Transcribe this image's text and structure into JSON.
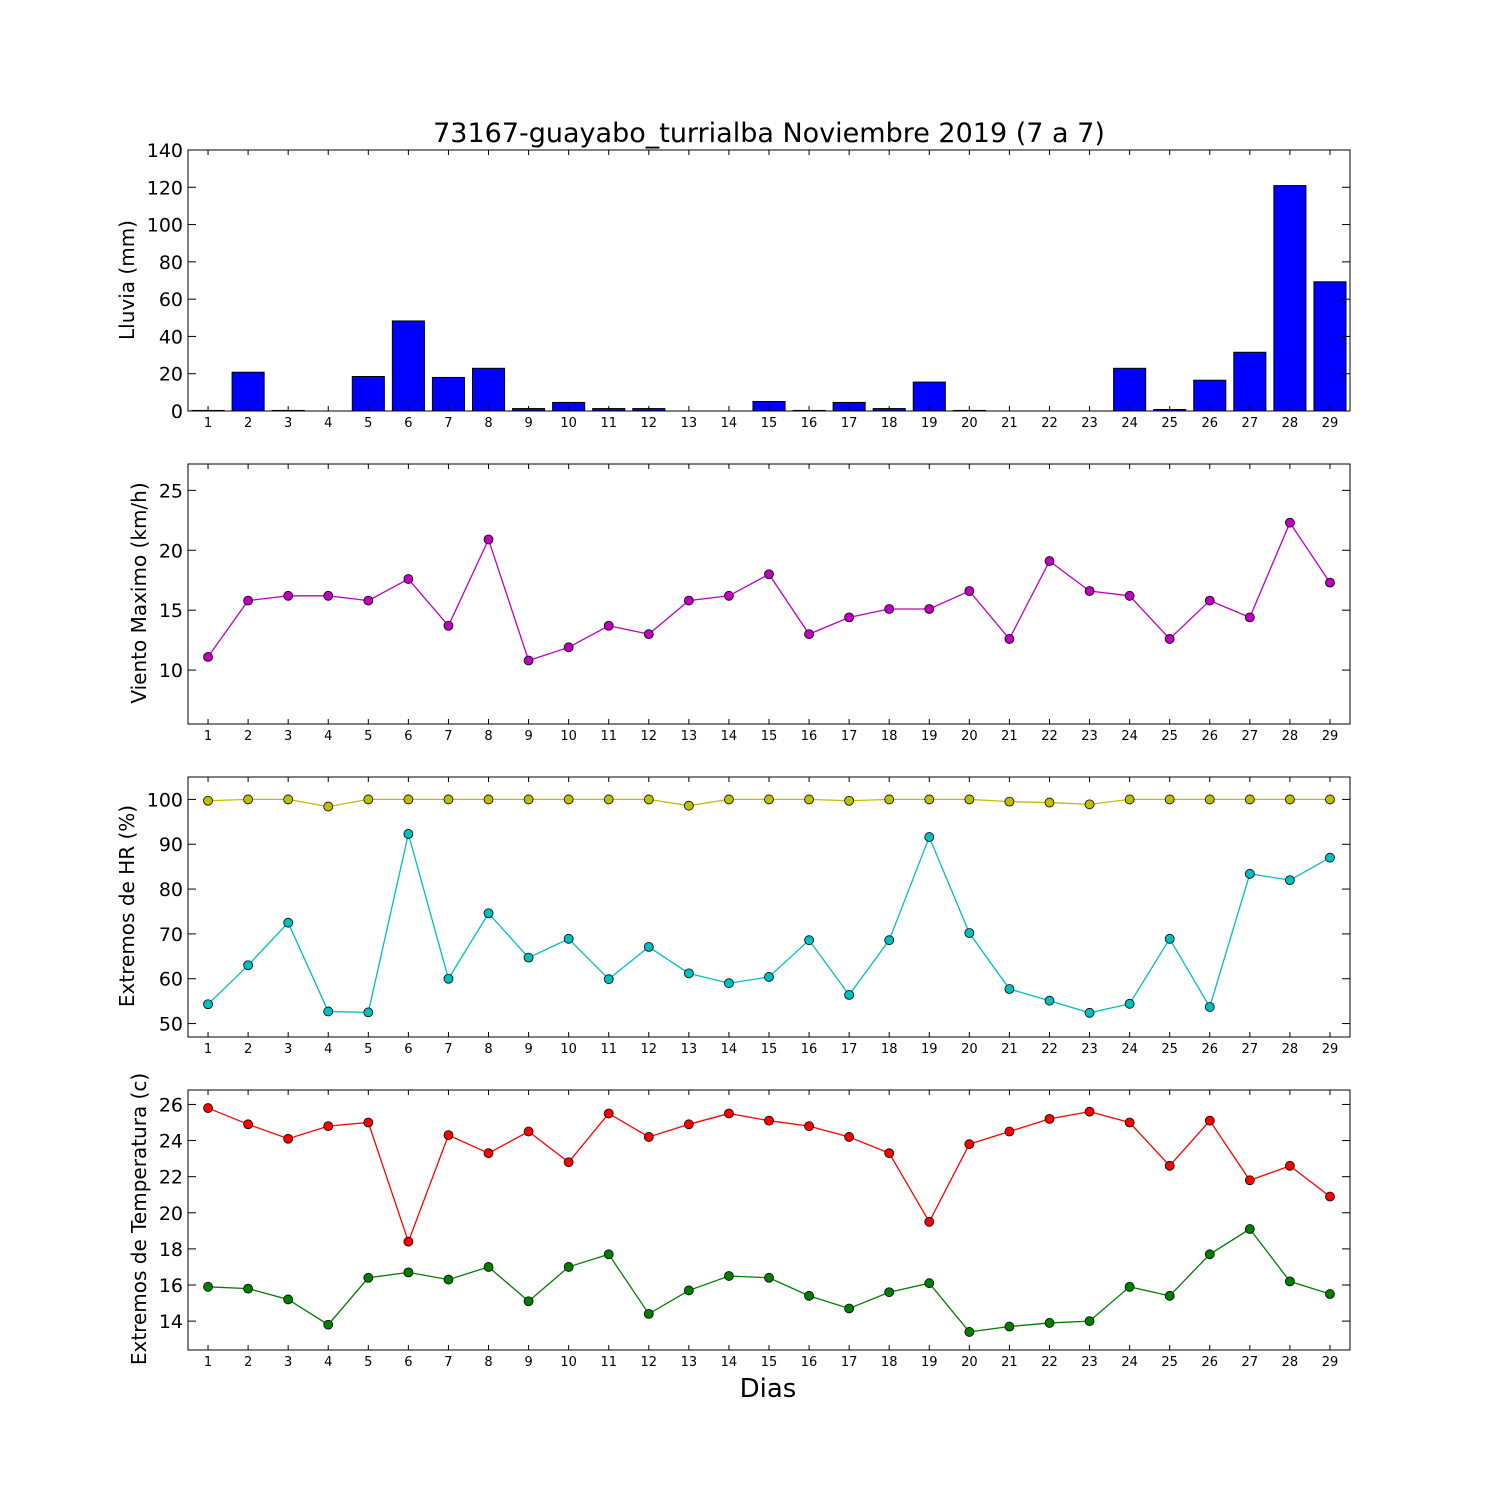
{
  "chart_data": [
    {
      "type": "bar",
      "title": "73167-guayabo_turrialba Noviembre 2019  (7 a 7)",
      "ylabel": "Lluvia (mm)",
      "xlabel": "",
      "categories": [
        "1",
        "2",
        "3",
        "4",
        "5",
        "6",
        "7",
        "8",
        "9",
        "10",
        "11",
        "12",
        "13",
        "14",
        "15",
        "16",
        "17",
        "18",
        "19",
        "20",
        "21",
        "22",
        "23",
        "24",
        "25",
        "26",
        "27",
        "28",
        "29"
      ],
      "values": [
        0.3,
        20.8,
        0.3,
        0,
        18.5,
        48.3,
        18.0,
        22.9,
        1.3,
        4.6,
        1.3,
        1.3,
        0,
        0,
        5.1,
        0.3,
        4.6,
        1.3,
        15.5,
        0.3,
        0,
        0,
        0,
        22.9,
        0.8,
        16.5,
        31.5,
        120.9,
        69.3
      ],
      "ylim": [
        0,
        140
      ],
      "yticks": [
        0,
        20,
        40,
        60,
        80,
        100,
        120,
        140
      ],
      "color": "#0000ff"
    },
    {
      "type": "line",
      "ylabel": "Viento Maximo (km/h)",
      "xlabel": "",
      "categories": [
        "1",
        "2",
        "3",
        "4",
        "5",
        "6",
        "7",
        "8",
        "9",
        "10",
        "11",
        "12",
        "13",
        "14",
        "15",
        "16",
        "17",
        "18",
        "19",
        "20",
        "21",
        "22",
        "23",
        "24",
        "25",
        "26",
        "27",
        "28",
        "29"
      ],
      "series": [
        {
          "values": [
            11.1,
            15.8,
            16.2,
            16.2,
            15.8,
            17.6,
            13.7,
            20.9,
            10.8,
            11.9,
            13.7,
            13.0,
            15.8,
            16.2,
            18.0,
            13.0,
            14.4,
            15.1,
            15.1,
            16.6,
            12.6,
            19.1,
            16.6,
            16.2,
            12.6,
            15.8,
            14.4,
            22.3,
            17.3
          ],
          "color": "#bf00bf"
        }
      ],
      "ylim": [
        5.5,
        27.2
      ],
      "yticks": [
        10,
        15,
        20,
        25
      ]
    },
    {
      "type": "line",
      "ylabel": "Extremos de HR (%)",
      "xlabel": "",
      "categories": [
        "1",
        "2",
        "3",
        "4",
        "5",
        "6",
        "7",
        "8",
        "9",
        "10",
        "11",
        "12",
        "13",
        "14",
        "15",
        "16",
        "17",
        "18",
        "19",
        "20",
        "21",
        "22",
        "23",
        "24",
        "25",
        "26",
        "27",
        "28",
        "29"
      ],
      "series": [
        {
          "values": [
            99.7,
            100,
            100,
            98.4,
            100,
            100,
            100,
            100,
            100,
            100,
            100,
            100,
            98.6,
            100,
            100,
            100,
            99.7,
            100,
            100,
            100,
            99.5,
            99.3,
            98.9,
            100,
            100,
            100,
            100,
            100,
            100
          ],
          "color": "#bfbf00"
        },
        {
          "values": [
            54.3,
            63.0,
            72.5,
            52.7,
            52.5,
            92.3,
            60.0,
            74.6,
            64.7,
            68.9,
            59.9,
            67.1,
            61.2,
            59.0,
            60.4,
            68.6,
            56.4,
            68.6,
            91.6,
            70.2,
            57.7,
            55.1,
            52.4,
            54.4,
            68.9,
            53.7,
            83.4,
            82.0,
            87.0
          ],
          "color": "#00bfbf"
        }
      ],
      "ylim": [
        47,
        105
      ],
      "yticks": [
        50,
        60,
        70,
        80,
        90,
        100
      ]
    },
    {
      "type": "line",
      "ylabel": "Extremos de Temperatura (c)",
      "xlabel": "Dias",
      "categories": [
        "1",
        "2",
        "3",
        "4",
        "5",
        "6",
        "7",
        "8",
        "9",
        "10",
        "11",
        "12",
        "13",
        "14",
        "15",
        "16",
        "17",
        "18",
        "19",
        "20",
        "21",
        "22",
        "23",
        "24",
        "25",
        "26",
        "27",
        "28",
        "29"
      ],
      "series": [
        {
          "values": [
            25.8,
            24.9,
            24.1,
            24.8,
            25.0,
            18.4,
            24.3,
            23.3,
            24.5,
            22.8,
            25.5,
            24.2,
            24.9,
            25.5,
            25.1,
            24.8,
            24.2,
            23.3,
            19.5,
            23.8,
            24.5,
            25.2,
            25.6,
            25.0,
            22.6,
            25.1,
            21.8,
            22.6,
            20.9
          ],
          "color": "#ff0000"
        },
        {
          "values": [
            15.9,
            15.8,
            15.2,
            13.8,
            16.4,
            16.7,
            16.3,
            17.0,
            15.1,
            17.0,
            17.7,
            14.4,
            15.7,
            16.5,
            16.4,
            15.4,
            14.7,
            15.6,
            16.1,
            13.4,
            13.7,
            13.9,
            14.0,
            15.9,
            15.4,
            17.7,
            19.1,
            16.2,
            15.5
          ],
          "color": "#007f00"
        }
      ],
      "ylim": [
        12.4,
        26.8
      ],
      "yticks": [
        14,
        16,
        18,
        20,
        22,
        24,
        26
      ]
    }
  ]
}
